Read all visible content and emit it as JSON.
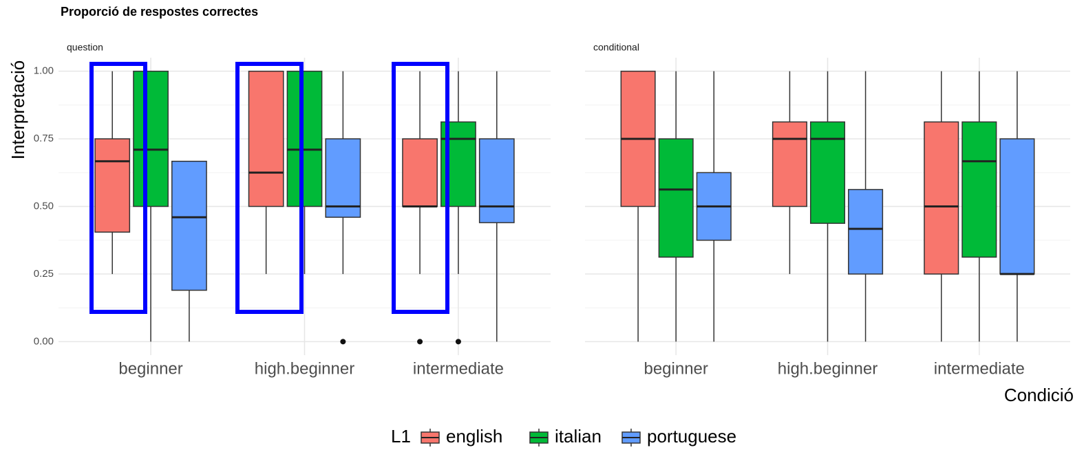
{
  "chart_data": {
    "type": "boxplot",
    "title": "Proporció de respostes correctes",
    "y_label": "Interpretació",
    "x_label": "Condició",
    "legend_title": "L1",
    "ylim": [
      -0.05,
      1.05
    ],
    "yticks": [
      {
        "value": 0,
        "label": "0.00"
      },
      {
        "value": 0.25,
        "label": "0.25"
      },
      {
        "value": 0.5,
        "label": "0.50"
      },
      {
        "value": 0.75,
        "label": "0.75"
      },
      {
        "value": 1,
        "label": "1.00"
      }
    ],
    "grid": true,
    "categories": [
      "beginner",
      "high.beginner",
      "intermediate"
    ],
    "series": [
      {
        "name": "english",
        "color": "#f8766d"
      },
      {
        "name": "italian",
        "color": "#00ba38"
      },
      {
        "name": "portuguese",
        "color": "#619cff"
      }
    ],
    "facets": [
      {
        "label": "question",
        "data": [
          [
            {
              "whislo": 0.25,
              "q1": 0.405,
              "med": 0.667,
              "q3": 0.75,
              "whishi": 1,
              "fliers": []
            },
            {
              "whislo": 0.25,
              "q1": 0.5,
              "med": 0.625,
              "q3": 1,
              "whishi": 1,
              "fliers": []
            },
            {
              "whislo": 0.25,
              "q1": 0.5,
              "med": 0.5,
              "q3": 0.75,
              "whishi": 1,
              "fliers": [
                0
              ]
            }
          ],
          [
            {
              "whislo": 0,
              "q1": 0.5,
              "med": 0.71,
              "q3": 1,
              "whishi": 1,
              "fliers": []
            },
            {
              "whislo": 0.25,
              "q1": 0.5,
              "med": 0.71,
              "q3": 1,
              "whishi": 1,
              "fliers": []
            },
            {
              "whislo": 0.25,
              "q1": 0.5,
              "med": 0.75,
              "q3": 0.8125,
              "whishi": 1,
              "fliers": [
                0
              ]
            }
          ],
          [
            {
              "whislo": 0,
              "q1": 0.19,
              "med": 0.46,
              "q3": 0.667,
              "whishi": 0.667,
              "fliers": []
            },
            {
              "whislo": 0.25,
              "q1": 0.46,
              "med": 0.5,
              "q3": 0.75,
              "whishi": 1,
              "fliers": [
                0
              ]
            },
            {
              "whislo": 0,
              "q1": 0.44,
              "med": 0.5,
              "q3": 0.75,
              "whishi": 1,
              "fliers": []
            }
          ]
        ]
      },
      {
        "label": "conditional",
        "data": [
          [
            {
              "whislo": 0,
              "q1": 0.5,
              "med": 0.75,
              "q3": 1,
              "whishi": 1,
              "fliers": []
            },
            {
              "whislo": 0.25,
              "q1": 0.5,
              "med": 0.75,
              "q3": 0.8125,
              "whishi": 1,
              "fliers": []
            },
            {
              "whislo": 0,
              "q1": 0.25,
              "med": 0.5,
              "q3": 0.8125,
              "whishi": 1,
              "fliers": []
            }
          ],
          [
            {
              "whislo": 0,
              "q1": 0.3125,
              "med": 0.5625,
              "q3": 0.75,
              "whishi": 1,
              "fliers": []
            },
            {
              "whislo": 0,
              "q1": 0.4375,
              "med": 0.75,
              "q3": 0.8125,
              "whishi": 1,
              "fliers": []
            },
            {
              "whislo": 0,
              "q1": 0.3125,
              "med": 0.667,
              "q3": 0.8125,
              "whishi": 1,
              "fliers": []
            }
          ],
          [
            {
              "whislo": 0,
              "q1": 0.375,
              "med": 0.5,
              "q3": 0.625,
              "whishi": 1,
              "fliers": []
            },
            {
              "whislo": 0,
              "q1": 0.25,
              "med": 0.417,
              "q3": 0.5625,
              "whishi": 1,
              "fliers": []
            },
            {
              "whislo": 0,
              "q1": 0.25,
              "med": 0.25,
              "q3": 0.75,
              "whishi": 1,
              "fliers": []
            }
          ]
        ]
      }
    ]
  }
}
